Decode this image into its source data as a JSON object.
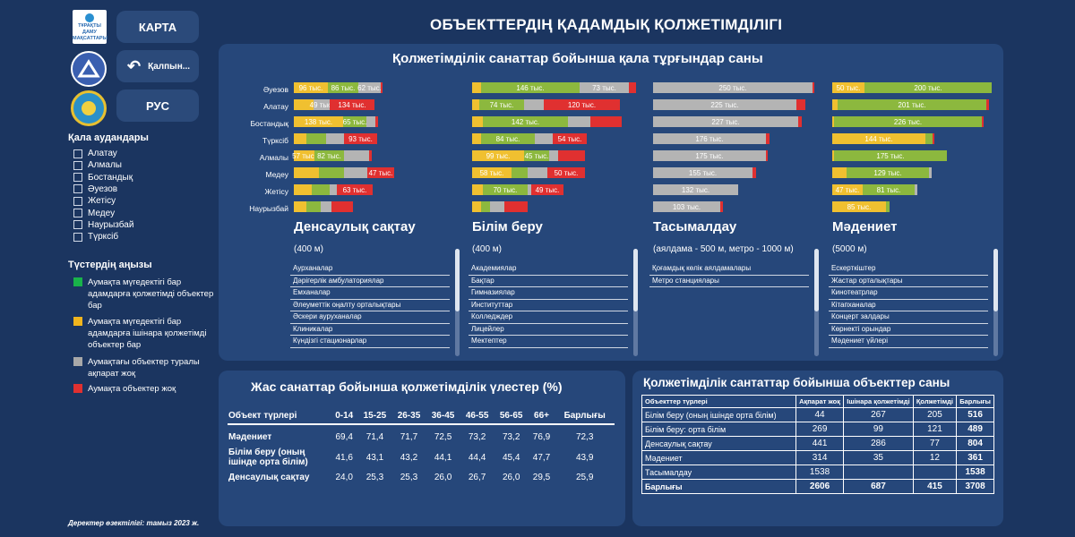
{
  "title": "ОБЪЕКТТЕРДІҢ ҚАДАМДЫҚ ҚОЛЖЕТІМДІЛІГІ",
  "buttons": {
    "map": "КАРТА",
    "back": "Қалпын...",
    "lang": "РУС"
  },
  "logo_text": {
    "line1": "ТҰРАҚТЫ",
    "line2": "ДАМУ",
    "line3": "МАҚСАТТАРЫ"
  },
  "districts_title": "Қала аудандары",
  "districts": [
    "Алатау",
    "Алмалы",
    "Бостандық",
    "Әуезов",
    "Жетісу",
    "Медеу",
    "Наурызбай",
    "Түрксіб"
  ],
  "legend_title": "Түстердің аңызы",
  "legend": [
    {
      "color": "#19b34a",
      "text": "Аумақта мүгедектігі бар адамдарға қолжетімді объектер бар"
    },
    {
      "color": "#f0b51e",
      "text": "Аумақта мүгедектігі бар адамдарға ішінара қолжетімді объектер бар"
    },
    {
      "color": "#a8a8a8",
      "text": "Аумақтағы объектер туралы ақпарат жоқ"
    },
    {
      "color": "#e03030",
      "text": "Аумақта объектер жоқ"
    }
  ],
  "panel_title": "Қолжетімділік санаттар бойынша қала тұрғындар саны",
  "row_labels": [
    "Әуезов",
    "Алатау",
    "Бостандық",
    "Түрксіб",
    "Алмалы",
    "Медеу",
    "Жетісу",
    "Наурызбай"
  ],
  "categories": [
    {
      "title": "Денсаулық сақтау",
      "sub": "(400 м)",
      "items": [
        "Аурханалар",
        "Дәрігерлік амбулаториялар",
        "Емханалар",
        "Әлеуметтік оңалту орталықтары",
        "Әскери ауруханалар",
        "Клиникалар",
        "Күндізгі стационарлар"
      ],
      "bars": [
        [
          [
            "y",
            "96 тыс.",
            38
          ],
          [
            "g",
            "86 тыс.",
            34
          ],
          [
            "gr",
            "62 тыс.",
            25
          ],
          [
            "r",
            "",
            2
          ]
        ],
        [
          [
            "y",
            "",
            22
          ],
          [
            "gr",
            "49 тыс.",
            18
          ],
          [
            "r",
            "134 тыс.",
            50
          ]
        ],
        [
          [
            "y",
            "138 тыс.",
            55
          ],
          [
            "g",
            "65 тыс.",
            26
          ],
          [
            "gr",
            "",
            10
          ],
          [
            "r",
            "",
            3
          ]
        ],
        [
          [
            "y",
            "",
            14
          ],
          [
            "g",
            "",
            22
          ],
          [
            "gr",
            "",
            20
          ],
          [
            "r",
            "93 тыс.",
            37
          ]
        ],
        [
          [
            "y",
            "57 тыс.",
            23
          ],
          [
            "g",
            "82 тыс.",
            33
          ],
          [
            "gr",
            "",
            28
          ],
          [
            "r",
            "",
            3
          ]
        ],
        [
          [
            "y",
            "",
            28
          ],
          [
            "g",
            "",
            28
          ],
          [
            "gr",
            "",
            26
          ],
          [
            "r",
            "47 тыс.",
            30
          ]
        ],
        [
          [
            "y",
            "",
            20
          ],
          [
            "g",
            "",
            20
          ],
          [
            "gr",
            "",
            8
          ],
          [
            "r",
            "63 тыс.",
            40
          ]
        ],
        [
          [
            "y",
            "",
            14
          ],
          [
            "g",
            "",
            16
          ],
          [
            "gr",
            "",
            12
          ],
          [
            "r",
            "",
            24
          ]
        ]
      ]
    },
    {
      "title": "Білім беру",
      "sub": "(400 м)",
      "items": [
        "Академиялар",
        "Бақтар",
        "Гимназиялар",
        "Институттар",
        "Колледждер",
        "Лицейлер",
        "Мектептер"
      ],
      "bars": [
        [
          [
            "y",
            "",
            10
          ],
          [
            "g",
            "146 тыс.",
            110
          ],
          [
            "gr",
            "73 тыс.",
            55
          ],
          [
            "r",
            "",
            8
          ]
        ],
        [
          [
            "y",
            "",
            8
          ],
          [
            "g",
            "74 тыс.",
            50
          ],
          [
            "gr",
            "",
            22
          ],
          [
            "r",
            "120 тыс.",
            85
          ]
        ],
        [
          [
            "y",
            "",
            12
          ],
          [
            "g",
            "142 тыс.",
            95
          ],
          [
            "gr",
            "",
            25
          ],
          [
            "r",
            "",
            35
          ]
        ],
        [
          [
            "y",
            "",
            10
          ],
          [
            "g",
            "84 тыс.",
            60
          ],
          [
            "gr",
            "",
            20
          ],
          [
            "r",
            "54 тыс.",
            38
          ]
        ],
        [
          [
            "y",
            "99 тыс.",
            58
          ],
          [
            "g",
            "45 тыс.",
            28
          ],
          [
            "gr",
            "",
            10
          ],
          [
            "r",
            "",
            30
          ]
        ],
        [
          [
            "y",
            "58 тыс.",
            44
          ],
          [
            "g",
            "",
            18
          ],
          [
            "gr",
            "",
            22
          ],
          [
            "r",
            "50 тыс.",
            42
          ]
        ],
        [
          [
            "y",
            "",
            12
          ],
          [
            "g",
            "70 тыс.",
            50
          ],
          [
            "gr",
            "",
            4
          ],
          [
            "r",
            "49 тыс.",
            36
          ]
        ],
        [
          [
            "y",
            "",
            10
          ],
          [
            "g",
            "",
            10
          ],
          [
            "gr",
            "",
            16
          ],
          [
            "r",
            "",
            26
          ]
        ]
      ]
    },
    {
      "title": "Тасымалдау",
      "sub": "(аялдама - 500 м, метро - 1000 м)",
      "items": [
        "Қоғамдық көлік аялдамалары",
        "Метро станциялары"
      ],
      "bars": [
        [
          [
            "gr",
            "250 тыс.",
            178
          ],
          [
            "r",
            "",
            2
          ]
        ],
        [
          [
            "gr",
            "225 тыс.",
            160
          ],
          [
            "r",
            "",
            10
          ]
        ],
        [
          [
            "gr",
            "227 тыс.",
            162
          ],
          [
            "r",
            "",
            4
          ]
        ],
        [
          [
            "gr",
            "176 тыс.",
            126
          ],
          [
            "r",
            "",
            4
          ]
        ],
        [
          [
            "gr",
            "175 тыс.",
            126
          ],
          [
            "r",
            "",
            2
          ]
        ],
        [
          [
            "gr",
            "155 тыс.",
            111
          ],
          [
            "r",
            "",
            4
          ]
        ],
        [
          [
            "gr",
            "132 тыс.",
            95
          ]
        ],
        [
          [
            "gr",
            "103 тыс.",
            75
          ],
          [
            "r",
            "",
            3
          ]
        ]
      ]
    },
    {
      "title": "Мәдениет",
      "sub": "(5000 м)",
      "items": [
        "Ескерткіштер",
        "Жастар орталықтары",
        "Кинотеатрлар",
        "Кітапханалар",
        "Концерт залдары",
        "Көрнекті орындар",
        "Мәдениет үйлері"
      ],
      "bars": [
        [
          [
            "y",
            "50 тыс.",
            36
          ],
          [
            "g",
            "200 тыс.",
            142
          ]
        ],
        [
          [
            "y",
            "",
            6
          ],
          [
            "g",
            "201 тыс.",
            166
          ],
          [
            "r",
            "",
            3
          ]
        ],
        [
          [
            "y",
            "",
            2
          ],
          [
            "g",
            "226 тыс.",
            165
          ],
          [
            "r",
            "",
            2
          ]
        ],
        [
          [
            "y",
            "144 тыс.",
            104
          ],
          [
            "g",
            "",
            8
          ],
          [
            "r",
            "",
            2
          ]
        ],
        [
          [
            "y",
            "",
            2
          ],
          [
            "g",
            "175 тыс.",
            126
          ]
        ],
        [
          [
            "y",
            "",
            16
          ],
          [
            "g",
            "129 тыс.",
            92
          ],
          [
            "gr",
            "",
            3
          ]
        ],
        [
          [
            "y",
            "47 тыс.",
            34
          ],
          [
            "g",
            "81 тыс.",
            58
          ],
          [
            "gr",
            "",
            3
          ]
        ],
        [
          [
            "y",
            "85 тыс.",
            60
          ],
          [
            "g",
            "",
            4
          ]
        ]
      ]
    }
  ],
  "age_table": {
    "title": "Жас санаттар бойынша қолжетімділік үлестер (%)",
    "headers": [
      "Объект түрлері",
      "0-14",
      "15-25",
      "26-35",
      "36-45",
      "46-55",
      "56-65",
      "66+",
      "Барлығы"
    ],
    "rows": [
      [
        "Мәдениет",
        "69,4",
        "71,4",
        "71,7",
        "72,5",
        "73,2",
        "73,2",
        "76,9",
        "72,3"
      ],
      [
        "Білім беру (оның ішінде орта білім)",
        "41,6",
        "43,1",
        "43,2",
        "44,1",
        "44,4",
        "45,4",
        "47,7",
        "43,9"
      ],
      [
        "Денсаулық сақтау",
        "24,0",
        "25,3",
        "25,3",
        "26,0",
        "26,7",
        "26,0",
        "29,5",
        "25,9"
      ]
    ]
  },
  "count_table": {
    "title": "Қолжетімділік сантаттар бойынша объекттер саны",
    "headers": [
      "Объекттер түрлері",
      "Ақпарат жоқ",
      "Ішінара қолжетімді",
      "Қолжетімді",
      "Барлығы"
    ],
    "rows": [
      [
        "Білім беру (оның ішінде орта білім)",
        "44",
        "267",
        "205",
        "516"
      ],
      [
        "Білім беру: орта білім",
        "269",
        "99",
        "121",
        "489"
      ],
      [
        "Денсаулық сақтау",
        "441",
        "286",
        "77",
        "804"
      ],
      [
        "Мәдениет",
        "314",
        "35",
        "12",
        "361"
      ],
      [
        "Тасымалдау",
        "1538",
        "",
        "",
        "1538"
      ],
      [
        "Барлығы",
        "2606",
        "687",
        "415",
        "3708"
      ]
    ]
  },
  "footer": "Деректер өзектілігі: тамыз 2023 ж."
}
